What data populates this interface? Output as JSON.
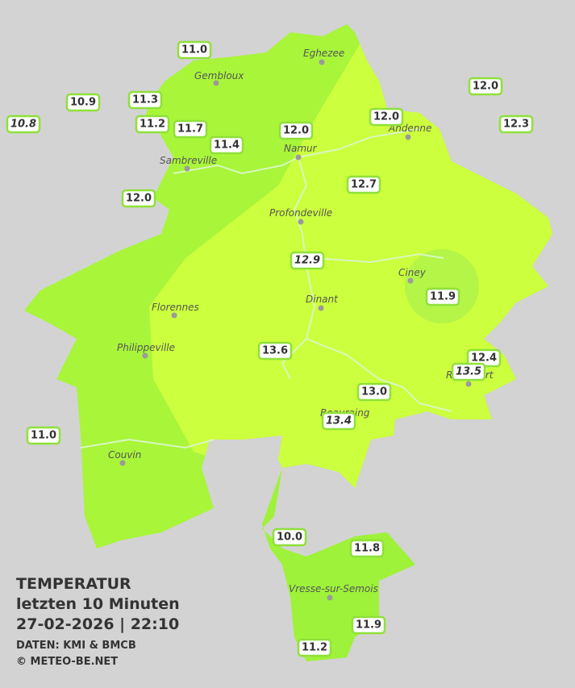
{
  "cities": [
    "Eghezee",
    "Gembloux",
    "Andenne",
    "Namur",
    "Sambreville",
    "Profondeville",
    "Ciney",
    "Dinant",
    "Florennes",
    "Philippeville",
    "Rochefort",
    "Beauraing",
    "Couvin",
    "Vresse-sur-Semois"
  ],
  "stations": [
    "11.0",
    "10.9",
    "11.3",
    "10.8",
    "11.2",
    "11.7",
    "11.4",
    "12.0",
    "12.0",
    "12.0",
    "12.3",
    "12.7",
    "12.0",
    "12.9",
    "11.9",
    "13.6",
    "12.4",
    "13.5",
    "13.0",
    "13.4",
    "11.0",
    "10.0",
    "11.8",
    "11.9",
    "11.2"
  ],
  "legend": {
    "title": "TEMPERATUR",
    "period": "letzten 10 Minuten",
    "datetime": "27-02-2026  |  22:10",
    "source": "DATEN: KMI & BMCB",
    "copyright": "© METEO-BE.NET"
  }
}
